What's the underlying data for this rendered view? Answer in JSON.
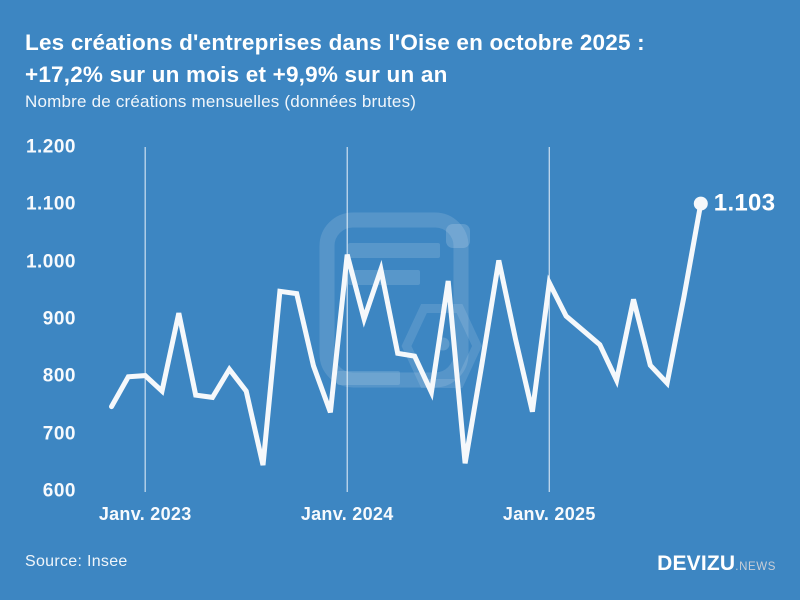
{
  "header": {
    "title_line1": "Les créations d'entreprises dans l'Oise en octobre 2025 :",
    "title_line2": "+17,2% sur un mois et +9,9% sur un an",
    "subtitle": "Nombre de créations mensuelles (données brutes)"
  },
  "footer": {
    "source": "Source: Insee",
    "logo_main": "DEVIZU",
    "logo_suffix": ".NEWS"
  },
  "colors": {
    "background": "#3d86c2",
    "line": "#f5f8fb",
    "grid": "rgba(255,255,255,0.75)",
    "text": "#ffffff",
    "watermark": "rgba(255,255,255,0.14)"
  },
  "chart_data": {
    "type": "line",
    "title": "Les créations d'entreprises dans l'Oise en octobre 2025 : +17,2% sur un mois et +9,9% sur un an",
    "subtitle": "Nombre de créations mensuelles (données brutes)",
    "x": [
      "2022-11",
      "2022-12",
      "2023-01",
      "2023-02",
      "2023-03",
      "2023-04",
      "2023-05",
      "2023-06",
      "2023-07",
      "2023-08",
      "2023-09",
      "2023-10",
      "2023-11",
      "2023-12",
      "2024-01",
      "2024-02",
      "2024-03",
      "2024-04",
      "2024-05",
      "2024-06",
      "2024-07",
      "2024-08",
      "2024-09",
      "2024-10",
      "2024-11",
      "2024-12",
      "2025-01",
      "2025-02",
      "2025-03",
      "2025-04",
      "2025-05",
      "2025-06",
      "2025-07",
      "2025-08",
      "2025-09",
      "2025-10"
    ],
    "values": [
      749,
      801,
      803,
      776,
      912,
      769,
      765,
      814,
      776,
      647,
      950,
      946,
      820,
      739,
      1014,
      902,
      988,
      842,
      837,
      774,
      968,
      650,
      823,
      1004,
      866,
      740,
      965,
      907,
      882,
      857,
      795,
      936,
      821,
      790,
      941,
      1103
    ],
    "ylim": [
      600,
      1200
    ],
    "yticks": {
      "values": [
        600,
        700,
        800,
        900,
        1000,
        1100,
        1200
      ],
      "labels": [
        "600",
        "700",
        "800",
        "900",
        "1.000",
        "1.100",
        "1.200"
      ]
    },
    "xticks": [
      {
        "label": "Janv. 2023",
        "index": 2
      },
      {
        "label": "Janv. 2024",
        "index": 14
      },
      {
        "label": "Janv. 2025",
        "index": 26
      }
    ],
    "grid": "vertical-only",
    "legend": "none",
    "end_label": "1.103",
    "last_value": 1103
  }
}
